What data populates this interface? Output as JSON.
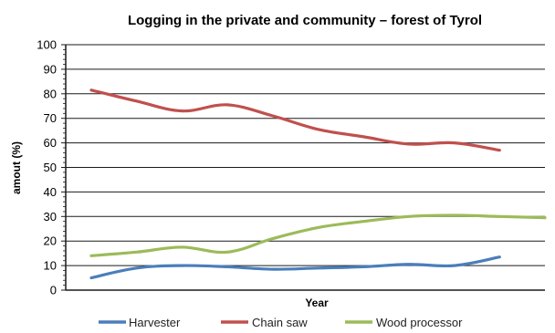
{
  "chart_data": {
    "type": "line",
    "title": "Logging in the private and community  – forest of Tyrol",
    "xlabel": "Year",
    "ylabel": "amout (%)",
    "ylim": [
      0,
      100
    ],
    "yticks": [
      "0",
      "10",
      "20",
      "30",
      "40",
      "50",
      "60",
      "70",
      "80",
      "90",
      "100"
    ],
    "x": [
      1,
      2,
      3,
      4,
      5,
      6,
      7,
      8,
      9,
      10,
      11
    ],
    "grid": true,
    "legend_position": "bottom",
    "series": [
      {
        "name": "Harvester",
        "color": "#4a7ebb",
        "values": [
          5,
          9,
          10,
          9.5,
          8.5,
          9,
          9.5,
          10.5,
          10,
          13.5,
          null
        ]
      },
      {
        "name": "Chain saw",
        "color": "#c0504d",
        "values": [
          81.5,
          77,
          73,
          75.5,
          71,
          65.5,
          62.5,
          59.5,
          60,
          57,
          null
        ]
      },
      {
        "name": "Wood processor",
        "color": "#9bbb59",
        "values": [
          14,
          15.5,
          17.5,
          15.5,
          21,
          25.5,
          28,
          30,
          30.5,
          30,
          29.5
        ]
      }
    ]
  }
}
